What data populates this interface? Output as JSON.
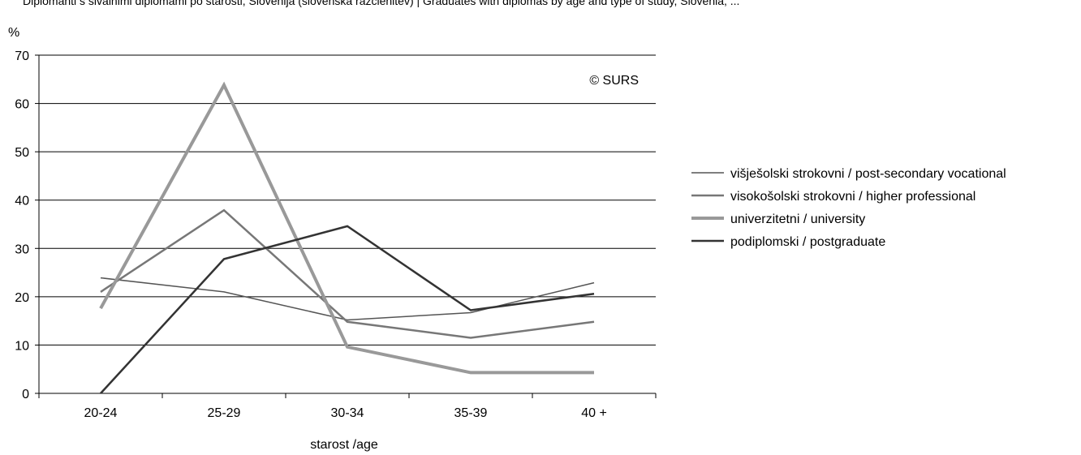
{
  "chart_data": {
    "type": "line",
    "title": "Diplomanti s sivalnimi diplomami po starosti, Slovenija (slovenska razčlenitev) | Graduates with diplomas by age and type of study, Slovenia, ...",
    "unit_label": "%",
    "xlabel": "starost /age",
    "watermark": "© SURS",
    "categories": [
      "20-24",
      "25-29",
      "30-34",
      "35-39",
      "40 +"
    ],
    "ylim": [
      0,
      70
    ],
    "yticks": [
      0,
      10,
      20,
      30,
      40,
      50,
      60,
      70
    ],
    "grid": true,
    "legend_position": "right",
    "series": [
      {
        "name": "višješolski strokovni / post-secondary vocational",
        "values": [
          23.9,
          21.0,
          15.2,
          16.7,
          22.9
        ],
        "color": "#555555",
        "width": 1.5
      },
      {
        "name": "visokošolski strokovni / higher professional",
        "values": [
          21.0,
          37.9,
          14.8,
          11.5,
          14.8
        ],
        "color": "#777777",
        "width": 2.5
      },
      {
        "name": "univerzitetni / university",
        "values": [
          17.6,
          63.8,
          9.6,
          4.3,
          4.3
        ],
        "color": "#999999",
        "width": 4
      },
      {
        "name": "podiplomski / postgraduate",
        "values": [
          0.0,
          27.8,
          34.6,
          17.2,
          20.6
        ],
        "color": "#333333",
        "width": 2.5
      }
    ]
  }
}
